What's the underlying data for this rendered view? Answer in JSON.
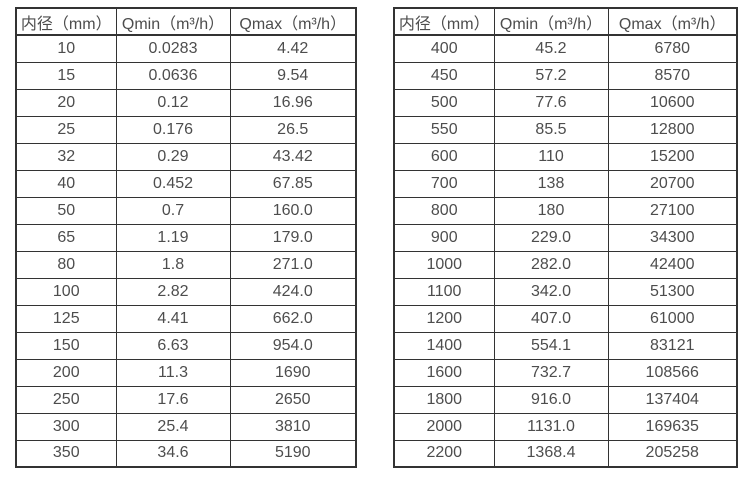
{
  "tables": [
    {
      "name": "small-diameter-flow-ranges",
      "headers": [
        "内径（mm）",
        "Qmin（m³/h）",
        "Qmax（m³/h）"
      ],
      "rows": [
        [
          "10",
          "0.0283",
          "4.42"
        ],
        [
          "15",
          "0.0636",
          "9.54"
        ],
        [
          "20",
          "0.12",
          "16.96"
        ],
        [
          "25",
          "0.176",
          "26.5"
        ],
        [
          "32",
          "0.29",
          "43.42"
        ],
        [
          "40",
          "0.452",
          "67.85"
        ],
        [
          "50",
          "0.7",
          "160.0"
        ],
        [
          "65",
          "1.19",
          "179.0"
        ],
        [
          "80",
          "1.8",
          "271.0"
        ],
        [
          "100",
          "2.82",
          "424.0"
        ],
        [
          "125",
          "4.41",
          "662.0"
        ],
        [
          "150",
          "6.63",
          "954.0"
        ],
        [
          "200",
          "11.3",
          "1690"
        ],
        [
          "250",
          "17.6",
          "2650"
        ],
        [
          "300",
          "25.4",
          "3810"
        ],
        [
          "350",
          "34.6",
          "5190"
        ]
      ]
    },
    {
      "name": "large-diameter-flow-ranges",
      "headers": [
        "内径（mm）",
        "Qmin（m³/h）",
        "Qmax（m³/h）"
      ],
      "rows": [
        [
          "400",
          "45.2",
          "6780"
        ],
        [
          "450",
          "57.2",
          "8570"
        ],
        [
          "500",
          "77.6",
          "10600"
        ],
        [
          "550",
          "85.5",
          "12800"
        ],
        [
          "600",
          "110",
          "15200"
        ],
        [
          "700",
          "138",
          "20700"
        ],
        [
          "800",
          "180",
          "27100"
        ],
        [
          "900",
          "229.0",
          "34300"
        ],
        [
          "1000",
          "282.0",
          "42400"
        ],
        [
          "1100",
          "342.0",
          "51300"
        ],
        [
          "1200",
          "407.0",
          "61000"
        ],
        [
          "1400",
          "554.1",
          "83121"
        ],
        [
          "1600",
          "732.7",
          "108566"
        ],
        [
          "1800",
          "916.0",
          "137404"
        ],
        [
          "2000",
          "1131.0",
          "169635"
        ],
        [
          "2200",
          "1368.4",
          "205258"
        ]
      ]
    }
  ],
  "colors": {
    "border": "#333333",
    "text": "#4d4d4d",
    "background": "#ffffff"
  }
}
